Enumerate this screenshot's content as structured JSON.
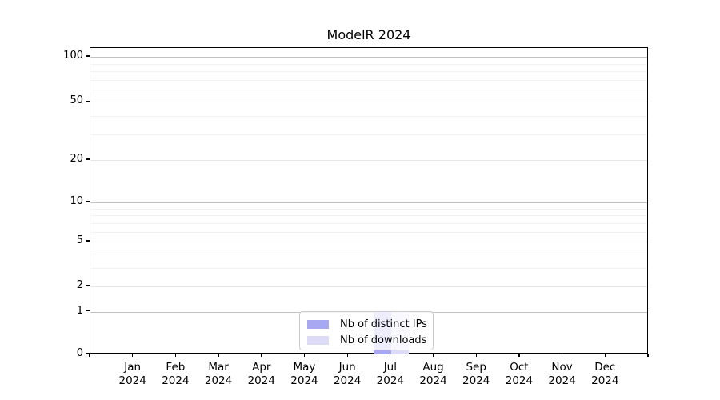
{
  "chart_data": {
    "type": "bar",
    "title": "ModelR 2024",
    "categories": [
      "Jan",
      "Feb",
      "Mar",
      "Apr",
      "May",
      "Jun",
      "Jul",
      "Aug",
      "Sep",
      "Oct",
      "Nov",
      "Dec"
    ],
    "year_label": "2024",
    "series": [
      {
        "name": "Nb of distinct IPs",
        "color": "#a7a7f2",
        "values": [
          0,
          0,
          0,
          0,
          0,
          0,
          1,
          0,
          0,
          0,
          0,
          0
        ]
      },
      {
        "name": "Nb of downloads",
        "color": "#dcdcf8",
        "values": [
          0,
          0,
          0,
          0,
          0,
          0,
          1,
          0,
          0,
          0,
          0,
          0
        ]
      }
    ],
    "xlabel": "",
    "ylabel": "",
    "yscale": "symlog",
    "yticks": [
      0,
      1,
      2,
      5,
      10,
      20,
      50,
      100
    ],
    "yminorticks": [
      3,
      4,
      6,
      7,
      8,
      9,
      30,
      40,
      60,
      70,
      80,
      90
    ],
    "ylim": [
      0,
      115
    ],
    "grid": true,
    "legend_position": "lower center",
    "colors": {
      "decade_grid": "#c3c3c3",
      "major_grid": "#e7e7e7",
      "minor_grid": "#f2f2f2",
      "spine": "#000000",
      "background": "#ffffff"
    }
  }
}
